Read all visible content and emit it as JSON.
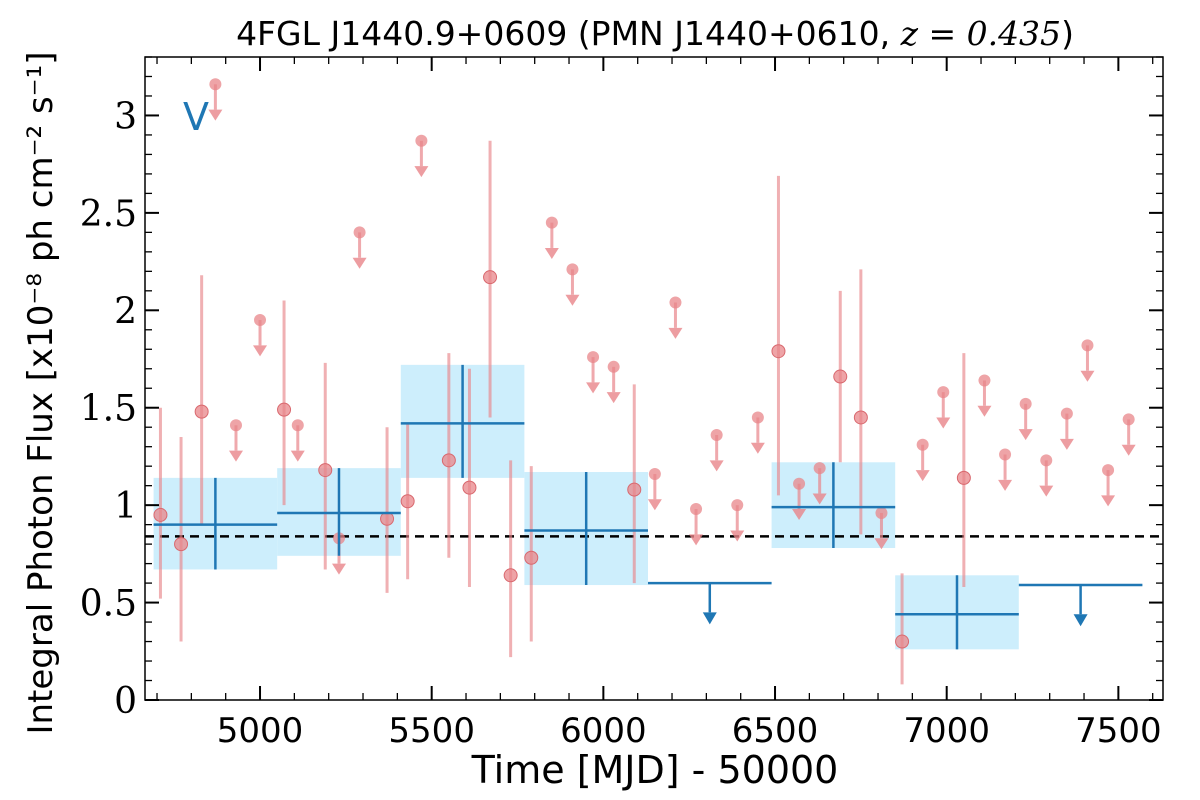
{
  "chart_data": {
    "type": "scatter",
    "title_plain": "4FGL J1440.9+0609 (PMN J1440+0610, ",
    "title_math": "z = 0.435",
    "title_close": ")",
    "xlabel": "Time [MJD] - 50000",
    "ylabel": "Integral Photon Flux [x10⁻⁸ ph cm⁻² s⁻¹]",
    "panel_label": "V",
    "xlim": [
      4665,
      7630
    ],
    "ylim": [
      0,
      3.3
    ],
    "x_ticks": [
      5000,
      5500,
      6000,
      6500,
      7000,
      7500
    ],
    "x_tick_labels": [
      "5000",
      "5500",
      "6000",
      "6500",
      "7000",
      "7500"
    ],
    "y_ticks": [
      0,
      0.5,
      1,
      1.5,
      2,
      2.5,
      3
    ],
    "y_tick_labels": [
      "0",
      "0.5",
      "1",
      "1.5",
      "2",
      "2.5",
      "3"
    ],
    "mean_flux": 0.84,
    "colors": {
      "short_bins": "#e8858a",
      "long_bins": "#1f77b4",
      "long_bins_fill": "#cdeefc",
      "mean_line": "#000000"
    },
    "short_bin_detections": [
      {
        "x": 4710,
        "y": 0.95,
        "ylo": 0.52,
        "yhi": 1.5
      },
      {
        "x": 4770,
        "y": 0.8,
        "ylo": 0.3,
        "yhi": 1.35
      },
      {
        "x": 4830,
        "y": 1.48,
        "ylo": 0.9,
        "yhi": 2.18
      },
      {
        "x": 5070,
        "y": 1.49,
        "ylo": 1.0,
        "yhi": 2.05
      },
      {
        "x": 5190,
        "y": 1.18,
        "ylo": 0.67,
        "yhi": 1.73
      },
      {
        "x": 5370,
        "y": 0.93,
        "ylo": 0.55,
        "yhi": 1.4
      },
      {
        "x": 5430,
        "y": 1.02,
        "ylo": 0.62,
        "yhi": 1.42
      },
      {
        "x": 5550,
        "y": 1.23,
        "ylo": 0.73,
        "yhi": 1.78
      },
      {
        "x": 5610,
        "y": 1.09,
        "ylo": 0.58,
        "yhi": 1.7
      },
      {
        "x": 5670,
        "y": 2.17,
        "ylo": 1.45,
        "yhi": 2.87
      },
      {
        "x": 5730,
        "y": 0.64,
        "ylo": 0.22,
        "yhi": 1.23
      },
      {
        "x": 5790,
        "y": 0.73,
        "ylo": 0.3,
        "yhi": 1.2
      },
      {
        "x": 6090,
        "y": 1.08,
        "ylo": 0.6,
        "yhi": 1.62
      },
      {
        "x": 6510,
        "y": 1.79,
        "ylo": 1.05,
        "yhi": 2.69
      },
      {
        "x": 6690,
        "y": 1.66,
        "ylo": 1.22,
        "yhi": 2.1
      },
      {
        "x": 6750,
        "y": 1.45,
        "ylo": 0.85,
        "yhi": 2.21
      },
      {
        "x": 6870,
        "y": 0.3,
        "ylo": 0.08,
        "yhi": 0.65
      },
      {
        "x": 7050,
        "y": 1.14,
        "ylo": 0.58,
        "yhi": 1.78
      }
    ],
    "short_bin_upper_limits": [
      {
        "x": 4870,
        "y": 3.16
      },
      {
        "x": 5000,
        "y": 1.95
      },
      {
        "x": 4930,
        "y": 1.41
      },
      {
        "x": 5110,
        "y": 1.41
      },
      {
        "x": 5230,
        "y": 0.83
      },
      {
        "x": 5290,
        "y": 2.4
      },
      {
        "x": 5470,
        "y": 2.87
      },
      {
        "x": 5850,
        "y": 2.45
      },
      {
        "x": 5910,
        "y": 2.21
      },
      {
        "x": 5970,
        "y": 1.76
      },
      {
        "x": 6030,
        "y": 1.71
      },
      {
        "x": 6150,
        "y": 1.16
      },
      {
        "x": 6210,
        "y": 2.04
      },
      {
        "x": 6270,
        "y": 0.98
      },
      {
        "x": 6330,
        "y": 1.36
      },
      {
        "x": 6390,
        "y": 1.0
      },
      {
        "x": 6450,
        "y": 1.45
      },
      {
        "x": 6570,
        "y": 1.11
      },
      {
        "x": 6630,
        "y": 1.19
      },
      {
        "x": 6810,
        "y": 0.96
      },
      {
        "x": 6930,
        "y": 1.31
      },
      {
        "x": 6990,
        "y": 1.58
      },
      {
        "x": 7110,
        "y": 1.64
      },
      {
        "x": 7170,
        "y": 1.26
      },
      {
        "x": 7230,
        "y": 1.52
      },
      {
        "x": 7290,
        "y": 1.23
      },
      {
        "x": 7350,
        "y": 1.47
      },
      {
        "x": 7410,
        "y": 1.82
      },
      {
        "x": 7470,
        "y": 1.18
      },
      {
        "x": 7530,
        "y": 1.44
      }
    ],
    "long_bin_detections": [
      {
        "x0": 4690,
        "x1": 5050,
        "xc": 4870,
        "y": 0.9,
        "ylo": 0.67,
        "yhi": 1.14
      },
      {
        "x0": 5050,
        "x1": 5410,
        "xc": 5230,
        "y": 0.96,
        "ylo": 0.74,
        "yhi": 1.19
      },
      {
        "x0": 5410,
        "x1": 5770,
        "xc": 5590,
        "y": 1.42,
        "ylo": 1.14,
        "yhi": 1.72
      },
      {
        "x0": 5770,
        "x1": 6130,
        "xc": 5950,
        "y": 0.87,
        "ylo": 0.59,
        "yhi": 1.17
      },
      {
        "x0": 6490,
        "x1": 6850,
        "xc": 6670,
        "y": 0.99,
        "ylo": 0.78,
        "yhi": 1.22
      },
      {
        "x0": 6850,
        "x1": 7210,
        "xc": 7030,
        "y": 0.44,
        "ylo": 0.26,
        "yhi": 0.64
      }
    ],
    "long_bin_upper_limits": [
      {
        "x0": 6130,
        "x1": 6490,
        "xc": 6310,
        "y": 0.6
      },
      {
        "x0": 7210,
        "x1": 7570,
        "xc": 7390,
        "y": 0.59
      }
    ]
  }
}
